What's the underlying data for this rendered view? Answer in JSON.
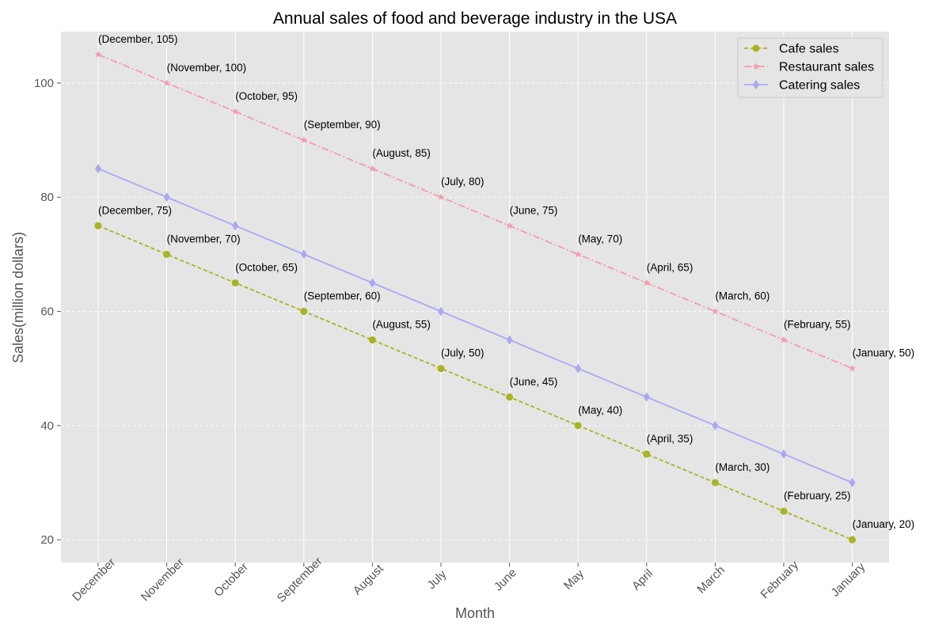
{
  "chart_data": {
    "type": "line",
    "title": "Annual sales of food and beverage industry in the USA",
    "xlabel": "Month",
    "ylabel": "Sales(million dollars)",
    "categories": [
      "December",
      "November",
      "October",
      "September",
      "August",
      "July",
      "June",
      "May",
      "April",
      "March",
      "February",
      "January"
    ],
    "ylim": [
      16,
      109
    ],
    "yticks": [
      20,
      40,
      60,
      80,
      100
    ],
    "grid": true,
    "legend_position": "top-right",
    "series": [
      {
        "name": "Cafe sales",
        "values": [
          75,
          70,
          65,
          60,
          55,
          50,
          45,
          40,
          35,
          30,
          25,
          20
        ],
        "color": "#a8b422",
        "line_style": "dashed",
        "marker": "circle",
        "annotated": true
      },
      {
        "name": "Restaurant sales",
        "values": [
          105,
          100,
          95,
          90,
          85,
          80,
          75,
          70,
          65,
          60,
          55,
          50
        ],
        "color": "#f59ab0",
        "line_style": "dashdot",
        "marker": "star",
        "annotated": true
      },
      {
        "name": "Catering sales",
        "values": [
          85,
          80,
          75,
          70,
          65,
          60,
          55,
          50,
          45,
          40,
          35,
          30
        ],
        "color": "#aba8f2",
        "line_style": "solid",
        "marker": "diamond",
        "annotated": false
      }
    ]
  }
}
